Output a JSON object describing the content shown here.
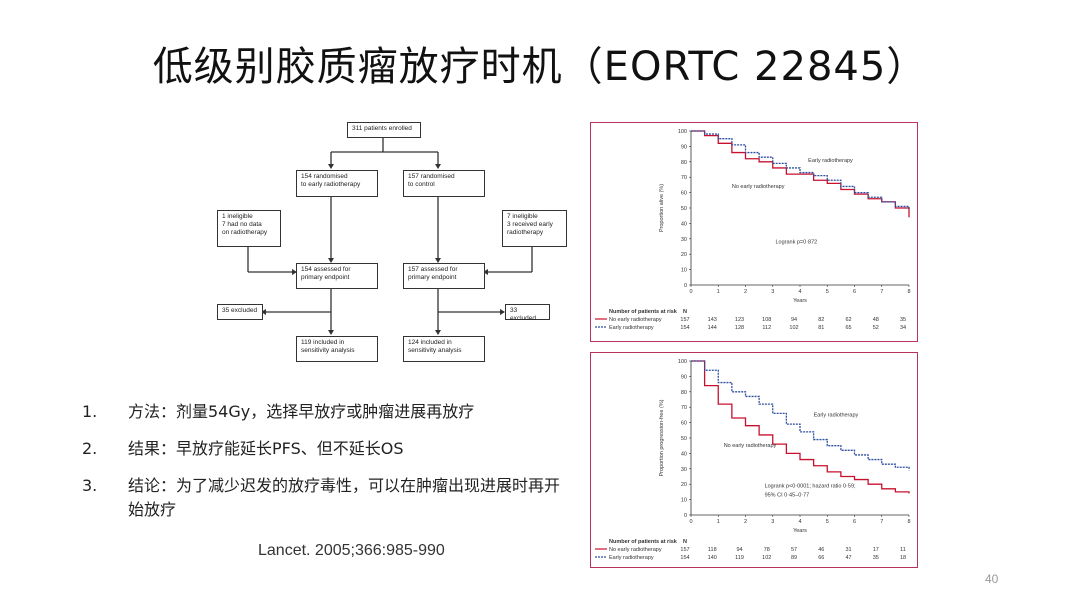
{
  "slide": {
    "title": "低级别胶质瘤放疗时机（EORTC 22845）",
    "page_number": "40",
    "citation": "Lancet. 2005;366:985-990"
  },
  "flow": {
    "enrolled": "311 patients enrolled",
    "rand_early": "154 randomised\nto early radiotherapy",
    "rand_control": "157 randomised\nto control",
    "left_excl": "1 ineligible\n7 had no data\non radiotherapy",
    "right_excl": "7 ineligible\n3 received early\nradiotherapy",
    "assessed_early": "154 assessed for\nprimary endpoint",
    "assessed_control": "157 assessed for\nprimary endpoint",
    "excluded_left": "35 excluded",
    "excluded_right": "33 excluded",
    "sens_early": "119 included in\nsensitivity analysis",
    "sens_control": "124 included in\nsensitivity analysis"
  },
  "list": [
    {
      "num": "1.",
      "text": "方法：剂量54Gy，选择早放疗或肿瘤进展再放疗"
    },
    {
      "num": "2.",
      "text": "结果：早放疗能延长PFS、但不延长OS"
    },
    {
      "num": "3.",
      "text": "结论：为了减少迟发的放疗毒性，可以在肿瘤出现进展时再开始放疗"
    }
  ],
  "colors": {
    "no_early": "#c8102e",
    "early": "#2f4fa0",
    "panel_border": "#b8335a"
  },
  "chart_data": [
    {
      "type": "line",
      "ylabel": "Proportion alive (%)",
      "xlabel": "Years",
      "xlim": [
        0,
        8
      ],
      "ylim": [
        0,
        100
      ],
      "x_ticks": [
        "0",
        "1",
        "2",
        "3",
        "4",
        "5",
        "6",
        "7",
        "8"
      ],
      "y_ticks": [
        "0",
        "10",
        "20",
        "30",
        "40",
        "50",
        "60",
        "70",
        "80",
        "90",
        "100"
      ],
      "annotation": "Logrank p=0·872",
      "series": [
        {
          "name": "No early radiotherapy",
          "x": [
            0,
            0.5,
            1,
            1.5,
            2,
            2.5,
            3,
            3.5,
            4,
            4.5,
            5,
            5.5,
            6,
            6.5,
            7,
            7.5,
            8
          ],
          "y": [
            100,
            97,
            92,
            86,
            82,
            80,
            76,
            72,
            72,
            68,
            66,
            62,
            59,
            56,
            54,
            50,
            44
          ]
        },
        {
          "name": "Early radiotherapy",
          "x": [
            0,
            0.5,
            1,
            1.5,
            2,
            2.5,
            3,
            3.5,
            4,
            4.5,
            5,
            5.5,
            6,
            6.5,
            7,
            7.5,
            8
          ],
          "y": [
            100,
            98,
            95,
            91,
            86,
            83,
            79,
            76,
            73,
            71,
            68,
            64,
            60,
            57,
            54,
            51,
            49
          ]
        }
      ],
      "risk_table": {
        "header": "Number of patients at risk",
        "n_label": "N",
        "rows": [
          {
            "label": "No early radiotherapy",
            "values": [
              "157",
              "143",
              "123",
              "108",
              "94",
              "82",
              "62",
              "48",
              "35"
            ]
          },
          {
            "label": "Early radiotherapy",
            "values": [
              "154",
              "144",
              "128",
              "112",
              "102",
              "81",
              "65",
              "52",
              "34"
            ]
          }
        ]
      }
    },
    {
      "type": "line",
      "ylabel": "Proportion progression-free (%)",
      "xlabel": "Years",
      "xlim": [
        0,
        8
      ],
      "ylim": [
        0,
        100
      ],
      "x_ticks": [
        "0",
        "1",
        "2",
        "3",
        "4",
        "5",
        "6",
        "7",
        "8"
      ],
      "y_ticks": [
        "0",
        "10",
        "20",
        "30",
        "40",
        "50",
        "60",
        "70",
        "80",
        "90",
        "100"
      ],
      "annotation_line1": "Logrank p<0·0001; hazard ratio 0·59;",
      "annotation_line2": "95% CI 0·45–0·77",
      "series": [
        {
          "name": "No early radiotherapy",
          "x": [
            0,
            0.5,
            1,
            1.5,
            2,
            2.5,
            3,
            3.5,
            4,
            4.5,
            5,
            5.5,
            6,
            6.5,
            7,
            7.5,
            8
          ],
          "y": [
            100,
            84,
            72,
            63,
            58,
            52,
            46,
            40,
            36,
            32,
            28,
            25,
            23,
            20,
            17,
            15,
            14
          ]
        },
        {
          "name": "Early radiotherapy",
          "x": [
            0,
            0.5,
            1,
            1.5,
            2,
            2.5,
            3,
            3.5,
            4,
            4.5,
            5,
            5.5,
            6,
            6.5,
            7,
            7.5,
            8
          ],
          "y": [
            100,
            94,
            86,
            80,
            77,
            72,
            66,
            59,
            54,
            49,
            45,
            42,
            39,
            36,
            33,
            31,
            29
          ]
        }
      ],
      "risk_table": {
        "header": "Number of patients at risk",
        "n_label": "N",
        "rows": [
          {
            "label": "No early radiotherapy",
            "values": [
              "157",
              "118",
              "94",
              "78",
              "57",
              "46",
              "31",
              "17",
              "11"
            ]
          },
          {
            "label": "Early radiotherapy",
            "values": [
              "154",
              "140",
              "119",
              "102",
              "89",
              "66",
              "47",
              "35",
              "18"
            ]
          }
        ]
      }
    }
  ]
}
